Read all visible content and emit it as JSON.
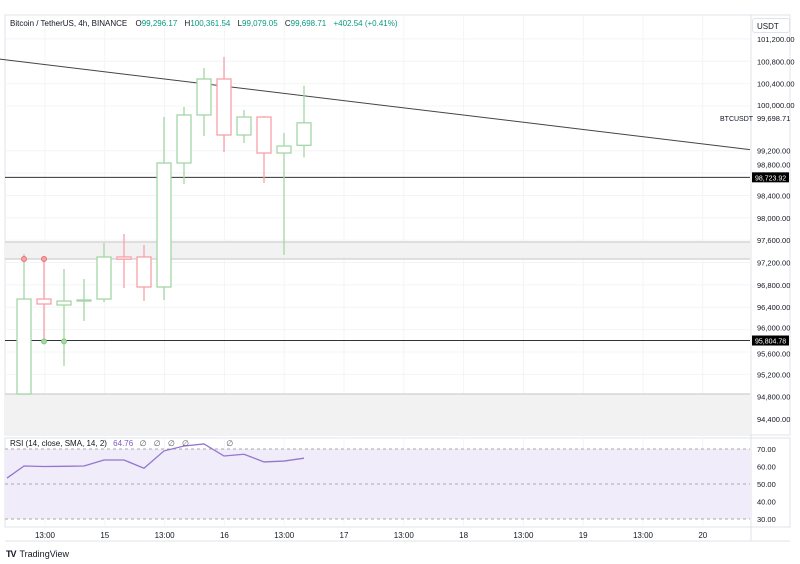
{
  "legend": {
    "symbol": "Bitcoin / TetherUS, 4h, BINANCE",
    "open_label": "O",
    "open": "99,296.17",
    "high_label": "H",
    "high": "100,361.54",
    "low_label": "L",
    "low": "99,079.05",
    "close_label": "C",
    "close": "99,698.71",
    "change": "+402.54 (+0.41%)"
  },
  "currency": "USDT",
  "last_price_tag": {
    "symbol": "BTCUSDT",
    "price": "99,698.71"
  },
  "rsi_legend": {
    "label": "RSI (14, close, SMA, 14, 2)",
    "value": "64.76",
    "na": [
      "∅",
      "∅",
      "∅",
      "∅",
      "∅"
    ]
  },
  "brand": "TradingView",
  "colors": {
    "up": "#089981",
    "down": "#f23645",
    "rsi": "#7e57c2",
    "up_candle": "#a5d6a7",
    "down_candle": "#f7a1a8"
  },
  "chart_data": {
    "type": "candlestick",
    "price_axis": {
      "ticks": [
        101200,
        100800,
        100400,
        100000,
        99200,
        98800,
        98400,
        98000,
        97600,
        97200,
        96800,
        96400,
        96000,
        95600,
        95200,
        94800,
        94400
      ],
      "tick_labels": [
        "101,200.00",
        "100,800.00",
        "100,400.00",
        "100,000.00",
        "99,200.00",
        "98,800.00",
        "98,400.00",
        "98,000.00",
        "97,600.00",
        "97,200.00",
        "96,800.00",
        "96,400.00",
        "96,000.00",
        "95,600.00",
        "95,200.00",
        "94,800.00",
        "94,400.00"
      ]
    },
    "time_axis": {
      "labels": [
        "13:00",
        "15",
        "13:00",
        "16",
        "13:00",
        "17",
        "13:00",
        "18",
        "13:00",
        "19",
        "13:00",
        "20"
      ]
    },
    "candles": [
      {
        "o": 94848,
        "h": 97353,
        "l": 94848,
        "c": 96547
      },
      {
        "o": 96547,
        "h": 97263,
        "l": 95760,
        "c": 96458
      },
      {
        "o": 96440,
        "h": 97084,
        "l": 95349,
        "c": 96511
      },
      {
        "o": 96511,
        "h": 96905,
        "l": 96154,
        "c": 96530
      },
      {
        "o": 96547,
        "h": 97549,
        "l": 96494,
        "c": 97299
      },
      {
        "o": 97300,
        "h": 97710,
        "l": 96744,
        "c": 97260
      },
      {
        "o": 97299,
        "h": 97513,
        "l": 96512,
        "c": 96762
      },
      {
        "o": 96762,
        "h": 99803,
        "l": 96530,
        "c": 98980
      },
      {
        "o": 98980,
        "h": 99982,
        "l": 98605,
        "c": 99839
      },
      {
        "o": 99839,
        "h": 100680,
        "l": 99463,
        "c": 100483
      },
      {
        "o": 100483,
        "h": 100877,
        "l": 99177,
        "c": 99481
      },
      {
        "o": 99481,
        "h": 99928,
        "l": 99338,
        "c": 99803
      },
      {
        "o": 99803,
        "h": 99821,
        "l": 98623,
        "c": 99159
      },
      {
        "o": 99159,
        "h": 99517,
        "l": 97335,
        "c": 99284
      },
      {
        "o": 99296.17,
        "h": 100361.54,
        "l": 99079.05,
        "c": 99698.71
      }
    ],
    "markers": [
      {
        "candle": 0,
        "price": 97263,
        "type": "high"
      },
      {
        "candle": 1,
        "price": 97263,
        "type": "high"
      },
      {
        "candle": 1,
        "price": 95790,
        "type": "low"
      },
      {
        "candle": 2,
        "price": 95790,
        "type": "low"
      }
    ],
    "horizontal_lines": [
      {
        "price": 98723.92,
        "label": "98,723.92"
      },
      {
        "price": 95804.78,
        "label": "95,804.78"
      }
    ],
    "zones": [
      {
        "from": 97263,
        "to": 97567
      },
      {
        "from": 93600,
        "to": 94848
      }
    ],
    "trendline": {
      "from_candle": -1,
      "from_price": 100860,
      "to_candle": 36.3,
      "to_price": 99220
    },
    "rsi": {
      "ticks": [
        70,
        60,
        50,
        40,
        30
      ],
      "tick_labels": [
        "70.00",
        "60.00",
        "50.00",
        "40.00",
        "30.00"
      ],
      "band": [
        30,
        70
      ],
      "prev": 53.4,
      "values": [
        60.3,
        60.0,
        60.1,
        60.3,
        63.7,
        63.7,
        59.0,
        68.9,
        71.7,
        72.9,
        66.0,
        67.0,
        62.6,
        63.1,
        64.76
      ]
    }
  }
}
